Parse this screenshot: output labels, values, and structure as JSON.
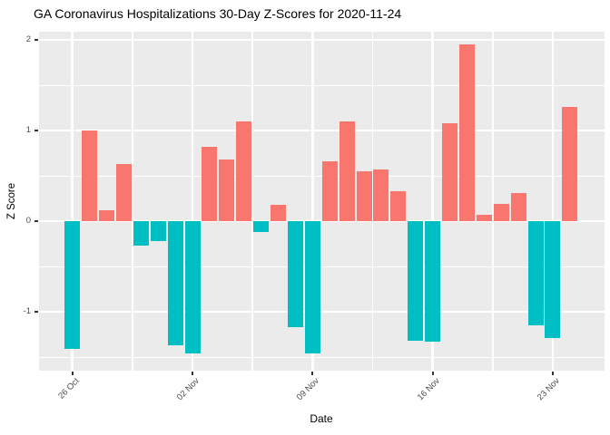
{
  "chart_data": {
    "type": "bar",
    "title": "GA Coronavirus Hospitalizations 30-Day Z-Scores for 2020-11-24",
    "xlabel": "Date",
    "ylabel": "Z Score",
    "ylim": [
      -1.65,
      2.09
    ],
    "yticks": [
      2,
      1,
      0,
      -1
    ],
    "ytick_labels": [
      "2",
      "1",
      "0",
      "-1"
    ],
    "yminor": [
      1.5,
      0.5,
      -0.5,
      -1.5
    ],
    "grid": true,
    "legend_position": "none",
    "categories": [
      "2020-10-26",
      "2020-10-27",
      "2020-10-28",
      "2020-10-29",
      "2020-10-30",
      "2020-10-31",
      "2020-11-01",
      "2020-11-02",
      "2020-11-03",
      "2020-11-04",
      "2020-11-05",
      "2020-11-06",
      "2020-11-07",
      "2020-11-08",
      "2020-11-09",
      "2020-11-10",
      "2020-11-11",
      "2020-11-12",
      "2020-11-13",
      "2020-11-14",
      "2020-11-15",
      "2020-11-16",
      "2020-11-17",
      "2020-11-18",
      "2020-11-19",
      "2020-11-20",
      "2020-11-21",
      "2020-11-22",
      "2020-11-23",
      "2020-11-24"
    ],
    "values": [
      -1.41,
      1.0,
      0.12,
      0.63,
      -0.27,
      -0.22,
      -1.37,
      -1.46,
      0.82,
      0.68,
      1.1,
      -0.12,
      0.18,
      -1.17,
      -1.46,
      0.66,
      1.1,
      0.55,
      0.57,
      0.33,
      -1.32,
      -1.33,
      1.08,
      1.95,
      0.07,
      0.19,
      0.31,
      -1.15,
      -1.29,
      1.26
    ],
    "x_tick_labels": [
      "26 Oct",
      "02 Nov",
      "09 Nov",
      "16 Nov",
      "23 Nov"
    ],
    "x_tick_indices": [
      0,
      7,
      14,
      21,
      28
    ],
    "x_minor_indices": [
      3.5,
      10.5,
      17.5,
      24.5
    ],
    "colors": {
      "positive_bar": "#F8766D",
      "negative_bar": "#00BFC4"
    }
  },
  "theme": {
    "panel_background": "#EBEBEB",
    "grid_color": "#FFFFFF",
    "tick_label_color": "#4D4D4D",
    "tick_mark_color": "#333333",
    "text_color": "#000000",
    "figure_background": "#FFFFFF"
  }
}
